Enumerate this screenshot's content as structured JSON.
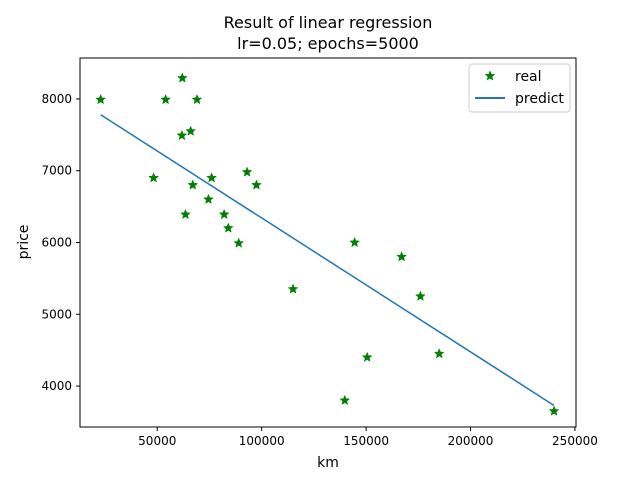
{
  "chart_data": {
    "type": "scatter",
    "title": "Result of linear regression",
    "subtitle": "lr=0.05; epochs=5000",
    "xlabel": "km",
    "ylabel": "price",
    "xlim": [
      13000,
      250500
    ],
    "ylim": [
      3430,
      8570
    ],
    "xticks": [
      50000,
      100000,
      150000,
      200000,
      250000
    ],
    "xtick_labels": [
      "50000",
      "100000",
      "150000",
      "200000",
      "250000"
    ],
    "yticks": [
      4000,
      5000,
      6000,
      7000,
      8000
    ],
    "ytick_labels": [
      "4000",
      "5000",
      "6000",
      "7000",
      "8000"
    ],
    "grid": false,
    "legend_position": "top-right",
    "series": [
      {
        "name": "real",
        "kind": "scatter",
        "marker": "star",
        "color": "#008000",
        "points": [
          [
            22899,
            7990
          ],
          [
            48235,
            6900
          ],
          [
            54000,
            7990
          ],
          [
            61789,
            7490
          ],
          [
            62000,
            8290
          ],
          [
            63500,
            6390
          ],
          [
            66000,
            7550
          ],
          [
            67000,
            6800
          ],
          [
            69000,
            7990
          ],
          [
            74500,
            6600
          ],
          [
            76025,
            6900
          ],
          [
            82029,
            6390
          ],
          [
            84000,
            6200
          ],
          [
            89000,
            5990
          ],
          [
            93000,
            6980
          ],
          [
            97500,
            6800
          ],
          [
            115000,
            5350
          ],
          [
            139800,
            3800
          ],
          [
            144500,
            5999
          ],
          [
            150500,
            4400
          ],
          [
            167000,
            5800
          ],
          [
            176000,
            5250
          ],
          [
            185000,
            4450
          ],
          [
            240000,
            3650
          ]
        ]
      },
      {
        "name": "predict",
        "kind": "line",
        "color": "#1f77b4",
        "points": [
          [
            22899,
            7780
          ],
          [
            240000,
            3730
          ]
        ]
      }
    ]
  }
}
